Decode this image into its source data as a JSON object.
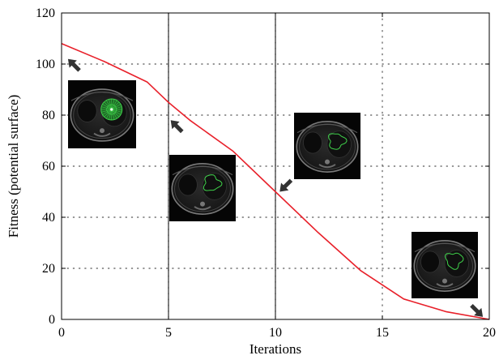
{
  "chart_data": {
    "type": "line",
    "xlabel": "Iterations",
    "ylabel": "Fitness (potential surface)",
    "xlim": [
      0,
      20
    ],
    "ylim": [
      0,
      120
    ],
    "xticks": [
      0,
      5,
      10,
      15,
      20
    ],
    "yticks": [
      0,
      20,
      40,
      60,
      80,
      100,
      120
    ],
    "grid": "dotted",
    "series": [
      {
        "color": "#e8202a",
        "x": [
          0,
          2,
          4,
          5,
          6,
          8,
          10,
          12,
          14,
          16,
          18,
          20
        ],
        "y": [
          108,
          101,
          93,
          85,
          78,
          66,
          50,
          34,
          19,
          8,
          3,
          0
        ]
      }
    ],
    "vertical_markers": [
      5,
      10
    ],
    "annotations": [
      {
        "kind": "mri-slice-inset",
        "contour": "initial-seed",
        "arrow_target": [
          0.3,
          102
        ]
      },
      {
        "kind": "mri-slice-inset",
        "contour": "evolving",
        "arrow_target": [
          5.1,
          78
        ]
      },
      {
        "kind": "mri-slice-inset",
        "contour": "evolving",
        "arrow_target": [
          10.2,
          50
        ]
      },
      {
        "kind": "mri-slice-inset",
        "contour": "converged",
        "arrow_target": [
          19.7,
          1
        ]
      }
    ],
    "colors": {
      "line": "#e8202a",
      "contour": "#3fd14a",
      "arrow": "#333333"
    }
  }
}
